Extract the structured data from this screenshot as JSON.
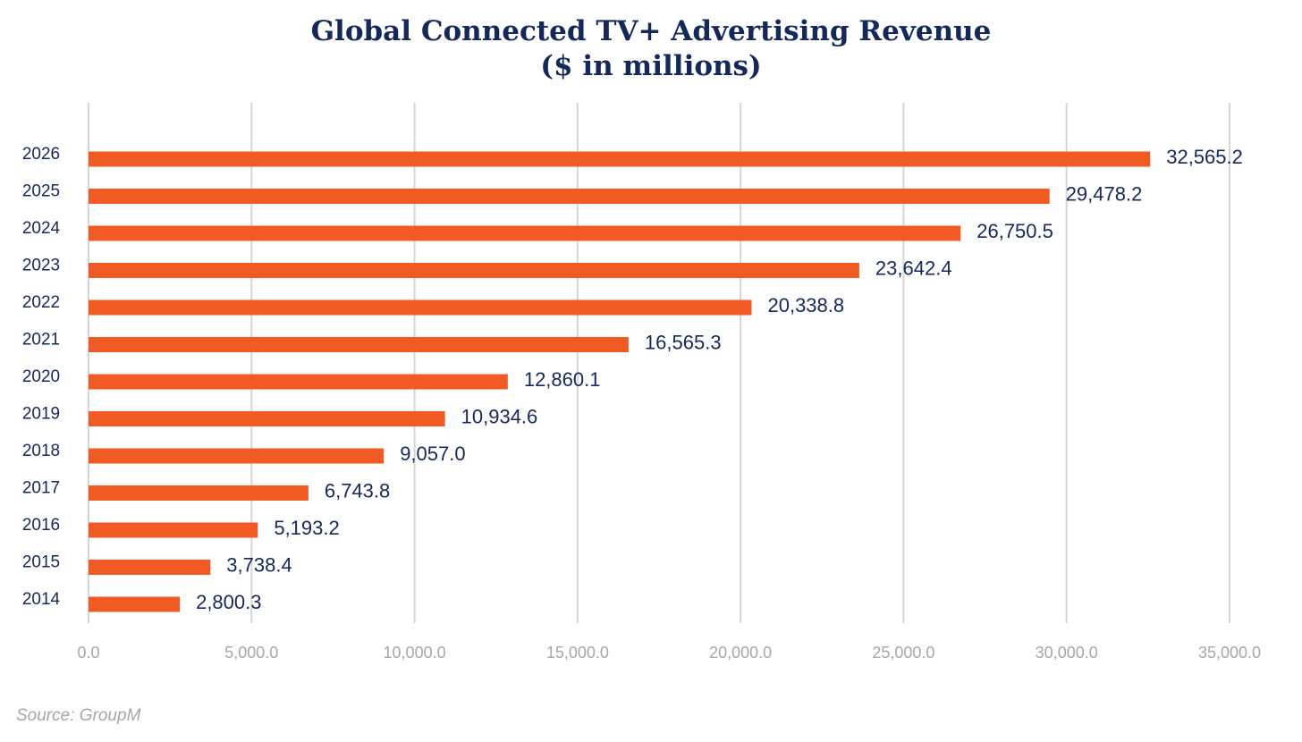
{
  "chart_data": {
    "type": "bar",
    "orientation": "horizontal",
    "title_line1": "Global Connected TV+ Advertising Revenue",
    "title_line2": "($ in millions)",
    "categories": [
      "2026",
      "2025",
      "2024",
      "2023",
      "2022",
      "2021",
      "2020",
      "2019",
      "2018",
      "2017",
      "2016",
      "2015",
      "2014"
    ],
    "values": [
      32565.2,
      29478.2,
      26750.5,
      23642.4,
      20338.8,
      16565.3,
      12860.1,
      10934.6,
      9057.0,
      6743.8,
      5193.2,
      3738.4,
      2800.3
    ],
    "value_labels": [
      "32,565.2",
      "29,478.2",
      "26,750.5",
      "23,642.4",
      "20,338.8",
      "16,565.3",
      "12,860.1",
      "10,934.6",
      "9,057.0",
      "6,743.8",
      "5,193.2",
      "3,738.4",
      "2,800.3"
    ],
    "x_ticks": [
      0,
      5000,
      10000,
      15000,
      20000,
      25000,
      30000,
      35000
    ],
    "x_tick_labels": [
      "0.0",
      "5,000.0",
      "10,000.0",
      "15,000.0",
      "20,000.0",
      "25,000.0",
      "30,000.0",
      "35,000.0"
    ],
    "xlim": [
      0,
      35000
    ],
    "xlabel": "",
    "ylabel": "",
    "grid": true,
    "bar_color": "#f15a22",
    "source": "Source: GroupM"
  }
}
